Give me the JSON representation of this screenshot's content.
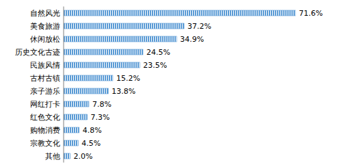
{
  "chart_data": {
    "type": "bar",
    "orientation": "horizontal",
    "categories": [
      "自然风光",
      "美食旅游",
      "休闲放松",
      "历史文化古迹",
      "民族风情",
      "古村古镇",
      "亲子游乐",
      "网红打卡",
      "红色文化",
      "购物消费",
      "宗教文化",
      "其他"
    ],
    "values": [
      71.6,
      37.2,
      34.9,
      24.5,
      23.5,
      15.2,
      13.8,
      7.8,
      7.3,
      4.8,
      4.5,
      2.0
    ],
    "value_labels": [
      "71.6%",
      "37.2%",
      "34.9%",
      "24.5%",
      "23.5%",
      "15.2%",
      "13.8%",
      "7.8%",
      "7.3%",
      "4.8%",
      "4.5%",
      "2.0%"
    ],
    "color": "#5b9bd5",
    "xlim": [
      0,
      75
    ],
    "data_labels": true,
    "tick_labels": "y",
    "grid": false
  }
}
